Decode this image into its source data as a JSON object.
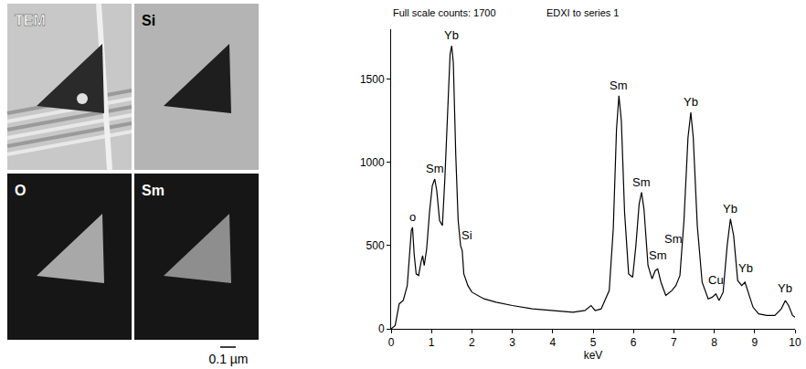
{
  "panels": [
    {
      "label": "TEM"
    },
    {
      "label": "Si"
    },
    {
      "label": "O"
    },
    {
      "label": "Sm"
    }
  ],
  "scale_bar": "0.1 µm",
  "chart_data": {
    "type": "line",
    "title": "Full scale counts: 1700",
    "subtitle": "EDXI to series 1",
    "x_label": "keV",
    "color": "#000000",
    "grid": false,
    "xlim": [
      0,
      10
    ],
    "xticks": [
      0,
      1,
      2,
      3,
      4,
      5,
      6,
      7,
      8,
      9,
      10
    ],
    "ylim": [
      0,
      1800
    ],
    "yticks": [
      0,
      500,
      1000,
      1500
    ],
    "x": [
      0,
      0.1,
      0.2,
      0.3,
      0.4,
      0.45,
      0.5,
      0.53,
      0.57,
      0.62,
      0.68,
      0.74,
      0.78,
      0.82,
      0.88,
      0.95,
      1.02,
      1.08,
      1.13,
      1.2,
      1.27,
      1.33,
      1.4,
      1.46,
      1.5,
      1.54,
      1.6,
      1.66,
      1.72,
      1.76,
      1.8,
      1.9,
      2,
      2.3,
      2.6,
      3,
      3.5,
      4,
      4.5,
      4.8,
      4.95,
      5.05,
      5.2,
      5.4,
      5.5,
      5.58,
      5.64,
      5.7,
      5.78,
      5.88,
      5.98,
      6.06,
      6.14,
      6.2,
      6.26,
      6.36,
      6.46,
      6.54,
      6.6,
      6.68,
      6.8,
      6.95,
      7.05,
      7.15,
      7.25,
      7.35,
      7.42,
      7.48,
      7.58,
      7.7,
      7.85,
      7.95,
      8.04,
      8.12,
      8.22,
      8.32,
      8.4,
      8.48,
      8.58,
      8.68,
      8.76,
      8.84,
      8.96,
      9.1,
      9.3,
      9.5,
      9.66,
      9.76,
      9.84,
      9.94,
      10
    ],
    "values": [
      0,
      20,
      150,
      170,
      260,
      420,
      590,
      610,
      450,
      330,
      320,
      400,
      440,
      380,
      480,
      700,
      860,
      900,
      830,
      650,
      620,
      900,
      1350,
      1650,
      1700,
      1600,
      1050,
      650,
      500,
      470,
      330,
      260,
      220,
      180,
      160,
      140,
      120,
      110,
      100,
      110,
      140,
      110,
      120,
      230,
      600,
      1200,
      1400,
      1250,
      700,
      330,
      310,
      500,
      750,
      820,
      720,
      380,
      300,
      350,
      360,
      280,
      200,
      230,
      260,
      320,
      650,
      1150,
      1300,
      1150,
      620,
      280,
      180,
      190,
      210,
      170,
      220,
      500,
      660,
      560,
      290,
      260,
      280,
      220,
      130,
      90,
      80,
      80,
      120,
      170,
      140,
      80,
      70
    ],
    "annotations": [
      {
        "text": "o",
        "x": 0.53,
        "y": 610
      },
      {
        "text": "Sm",
        "x": 1.08,
        "y": 900
      },
      {
        "text": "Yb",
        "x": 1.5,
        "y": 1700
      },
      {
        "text": "Si",
        "x": 1.88,
        "y": 500
      },
      {
        "text": "Sm",
        "x": 5.64,
        "y": 1400
      },
      {
        "text": "Sm",
        "x": 6.2,
        "y": 820
      },
      {
        "text": "Sm",
        "x": 6.6,
        "y": 380
      },
      {
        "text": "Sm",
        "x": 7.0,
        "y": 480
      },
      {
        "text": "Yb",
        "x": 7.42,
        "y": 1300
      },
      {
        "text": "Cu",
        "x": 8.04,
        "y": 230
      },
      {
        "text": "Yb",
        "x": 8.4,
        "y": 660
      },
      {
        "text": "Yb",
        "x": 8.78,
        "y": 300
      },
      {
        "text": "Yb",
        "x": 9.76,
        "y": 180
      }
    ]
  }
}
